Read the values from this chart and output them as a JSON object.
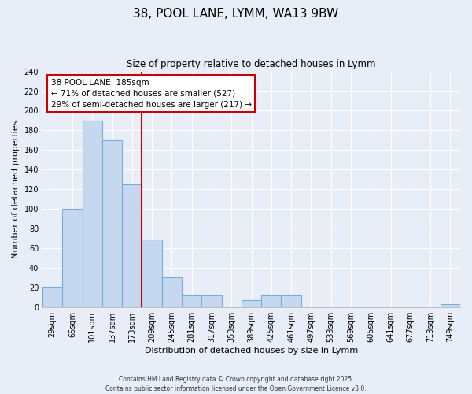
{
  "title": "38, POOL LANE, LYMM, WA13 9BW",
  "subtitle": "Size of property relative to detached houses in Lymm",
  "xlabel": "Distribution of detached houses by size in Lymm",
  "ylabel": "Number of detached properties",
  "categories": [
    "29sqm",
    "65sqm",
    "101sqm",
    "137sqm",
    "173sqm",
    "209sqm",
    "245sqm",
    "281sqm",
    "317sqm",
    "353sqm",
    "389sqm",
    "425sqm",
    "461sqm",
    "497sqm",
    "533sqm",
    "569sqm",
    "605sqm",
    "641sqm",
    "677sqm",
    "713sqm",
    "749sqm"
  ],
  "values": [
    21,
    100,
    190,
    170,
    125,
    69,
    31,
    13,
    13,
    0,
    7,
    13,
    13,
    0,
    0,
    0,
    0,
    0,
    0,
    0,
    3
  ],
  "bar_color": "#c5d8f0",
  "bar_edge_color": "#7aadd4",
  "vline_color": "#cc0000",
  "annotation_title": "38 POOL LANE: 185sqm",
  "annotation_line1": "← 71% of detached houses are smaller (527)",
  "annotation_line2": "29% of semi-detached houses are larger (217) →",
  "annotation_box_color": "#ffffff",
  "annotation_box_edge": "#cc0000",
  "ylim": [
    0,
    240
  ],
  "yticks": [
    0,
    20,
    40,
    60,
    80,
    100,
    120,
    140,
    160,
    180,
    200,
    220,
    240
  ],
  "background_color": "#e8eef8",
  "grid_color": "#ffffff",
  "footer1": "Contains HM Land Registry data © Crown copyright and database right 2025.",
  "footer2": "Contains public sector information licensed under the Open Government Licence v3.0."
}
